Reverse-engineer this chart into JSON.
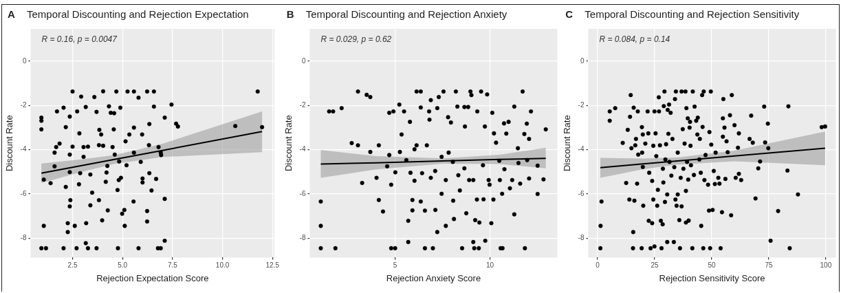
{
  "chart_data": [
    {
      "type": "scatter",
      "title": "Temporal Discounting and Rejection Expectation",
      "xlabel": "Rejection Expectation Score",
      "ylabel": "Discount Rate",
      "annotations": [
        "A",
        "R = 0.16, p = 0.0047"
      ],
      "xlim": [
        0.4,
        12.6
      ],
      "ylim": [
        -8.87,
        1.46
      ],
      "xticks": [
        2.5,
        {
          "value": 5,
          "label": "5.0"
        },
        7.5,
        {
          "value": 10,
          "label": "10.0"
        },
        12.5
      ],
      "yticks": [
        -8,
        -6,
        -4,
        -2,
        0
      ],
      "grid": true,
      "marker": "circle",
      "series": [
        {
          "type": "scatter",
          "color": "#000000",
          "x": [
            0.94,
            0.94,
            0.94,
            1.06,
            1.06,
            0.94,
            1.17,
            1.4,
            1.6,
            1.72,
            1.6,
            1.68,
            2.05,
            2.16,
            2.16,
            2.05,
            2.26,
            2.26,
            2.36,
            2.36,
            2.36,
            2.39,
            2.5,
            2.5,
            2.61,
            2.7,
            2.73,
            2.82,
            2.84,
            2.93,
            3.05,
            3.05,
            3.16,
            3.16,
            3.18,
            3.27,
            3.27,
            3.39,
            3.39,
            3.59,
            3.7,
            3.7,
            3.82,
            3.84,
            3.98,
            3.93,
            4.03,
            4.03,
            4.16,
            4.24,
            4.26,
            4.32,
            4.5,
            4.58,
            4.56,
            4.61,
            4.69,
            4.77,
            4.81,
            4.83,
            4.89,
            4.92,
            4.98,
            5.09,
            5.15,
            5.2,
            5.25,
            5.11,
            5.34,
            5.57,
            5.57,
            5.57,
            5.55,
            5.8,
            5.8,
            5.91,
            5.98,
            6.0,
            6.0,
            6.23,
            6.23,
            6.32,
            6.34,
            6.45,
            6.57,
            6.57,
            6.68,
            6.77,
            6.8,
            6.91,
            6.91,
            7.11,
            7.11,
            7.11,
            7.45,
            7.77,
            7.68,
            10.64,
            11.76,
            11.98,
            6.93,
            6.34,
            6.23,
            4.75,
            4.41,
            4.2,
            3.82,
            3.48,
            2.88,
            2.36,
            1.85
          ],
          "values": [
            -2.55,
            -2.69,
            -3.08,
            -5.35,
            -7.44,
            -8.45,
            -8.45,
            -5.51,
            -4.75,
            -2.27,
            -4.13,
            -3.88,
            -2.1,
            -2.98,
            -5.68,
            -8.45,
            -7.72,
            -7.32,
            -6.56,
            -4.22,
            -2.5,
            -6.28,
            -1.37,
            -3.86,
            -7.44,
            -8.45,
            -2.27,
            -5.56,
            -3.26,
            -1.6,
            -3.88,
            -4.32,
            -2.07,
            -8.22,
            -7.32,
            -8.45,
            -3.86,
            -6.51,
            -5.12,
            -1.62,
            -8.45,
            -2.29,
            -6.28,
            -3.1,
            -7.19,
            -3.31,
            -1.36,
            -3.82,
            -5.45,
            -4.73,
            -6.74,
            -2.04,
            -3.88,
            -2.35,
            -3.08,
            -4.22,
            -1.37,
            -8.45,
            -5.37,
            -4.53,
            -2.1,
            -5.27,
            -6.89,
            -6.72,
            -3.62,
            -4.7,
            -1.37,
            -7.44,
            -3.31,
            -1.37,
            -3.0,
            -4.13,
            -6.34,
            -1.65,
            -8.45,
            -4.55,
            -3.31,
            -5.3,
            -5.48,
            -1.37,
            -6.77,
            -3.79,
            -5.06,
            -5.84,
            -1.37,
            -2.05,
            -5.32,
            -8.45,
            -3.88,
            -8.45,
            -4.13,
            -8.11,
            -6.22,
            -2.55,
            -1.96,
            -2.95,
            -2.82,
            -2.93,
            -1.37,
            -2.98,
            -4.24,
            -2.84,
            -7.24,
            -5.82,
            -2.33,
            -5.03,
            -3.79,
            -5.94,
            -5.06,
            -5.01,
            -3.72
          ]
        },
        {
          "type": "line",
          "marker": "none",
          "color": "#000000",
          "x": [
            0.94,
            3,
            4.6,
            7,
            11.98
          ],
          "values": [
            -5.06,
            -4.71,
            -4.44,
            -4.03,
            -3.18
          ],
          "lower": [
            -5.5,
            -4.99,
            -4.64,
            -4.33,
            -4.11
          ],
          "upper": [
            -4.62,
            -4.43,
            -4.24,
            -3.73,
            -2.27
          ]
        }
      ]
    },
    {
      "type": "scatter",
      "title": "Temporal Discounting and Rejection Anxiety",
      "xlabel": "Rejection Anxiety Score",
      "ylabel": "Discount Rate",
      "annotations": [
        "B",
        "R = 0.029, p = 0.62"
      ],
      "xlim": [
        0.5,
        13.55
      ],
      "ylim": [
        -8.87,
        1.46
      ],
      "xticks": [
        5,
        10
      ],
      "yticks": [
        -8,
        -6,
        -4,
        -2,
        0
      ],
      "grid": true,
      "marker": "circle",
      "series": [
        {
          "type": "scatter",
          "color": "#000000",
          "x": [
            1.08,
            1.08,
            1.08,
            1.52,
            1.73,
            1.85,
            2.18,
            2.71,
            3.04,
            3.04,
            3.26,
            3.5,
            3.69,
            3.69,
            4.02,
            4.14,
            4.14,
            4.36,
            4.58,
            4.69,
            4.69,
            4.79,
            4.79,
            5.0,
            4.91,
            5.01,
            5.22,
            5.25,
            5.34,
            5.47,
            5.59,
            5.69,
            5.69,
            5.78,
            5.81,
            5.91,
            5.91,
            6.02,
            6.02,
            6.13,
            6.13,
            6.35,
            6.35,
            6.35,
            6.42,
            6.57,
            6.57,
            6.67,
            6.79,
            6.81,
            6.88,
            6.88,
            6.99,
            7.11,
            7.12,
            7.22,
            7.22,
            7.3,
            7.45,
            7.45,
            7.55,
            7.67,
            7.67,
            7.79,
            7.82,
            7.94,
            8.06,
            8.2,
            8.1,
            8.28,
            8.33,
            8.41,
            8.53,
            8.65,
            8.65,
            8.68,
            8.75,
            8.85,
            8.9,
            8.97,
            9.02,
            9.12,
            9.12,
            9.17,
            9.22,
            9.31,
            9.33,
            9.41,
            9.44,
            9.53,
            9.63,
            9.66,
            9.73,
            9.75,
            9.85,
            9.93,
            9.98,
            10.07,
            10.12,
            10.18,
            10.21,
            10.32,
            10.52,
            10.56,
            10.66,
            10.64,
            10.74,
            10.76,
            10.86,
            10.98,
            11.05,
            11.17,
            11.28,
            11.28,
            11.47,
            11.59,
            11.72,
            11.81,
            11.84,
            11.94,
            12.06,
            12.16,
            12.06,
            12.51,
            12.51,
            12.82,
            12.94,
            11.96,
            11.5,
            10.49,
            8.04
          ],
          "values": [
            -6.34,
            -7.44,
            -8.45,
            -2.27,
            -2.27,
            -8.45,
            -2.12,
            -3.7,
            -1.37,
            -3.8,
            -5.5,
            -1.52,
            -1.62,
            -4.1,
            -5.27,
            -3.8,
            -6.27,
            -6.79,
            -4.75,
            -2.33,
            -4.24,
            -5.58,
            -8.45,
            -8.45,
            -2.27,
            -5.02,
            -1.96,
            -4.1,
            -3.31,
            -2.27,
            -4.47,
            -7.21,
            -8.17,
            -2.74,
            -5.04,
            -6.27,
            -6.74,
            -5.4,
            -3.98,
            -1.37,
            -3.8,
            -1.37,
            -2.09,
            -6.34,
            -5.06,
            -6.75,
            -8.45,
            -3.8,
            -2.27,
            -2.64,
            -1.76,
            -5.27,
            -8.45,
            -4.96,
            -6.72,
            -2.12,
            -7.72,
            -1.62,
            -4.32,
            -5.99,
            -1.37,
            -5.37,
            -7.44,
            -2.53,
            -4.13,
            -2.77,
            -6.3,
            -1.37,
            -7.13,
            -2.05,
            -5.15,
            -5.84,
            -8.45,
            -2.07,
            -4.84,
            -2.95,
            -6.87,
            -2.07,
            -5.37,
            -1.37,
            -1.53,
            -5.37,
            -8.17,
            -8.45,
            -7.18,
            -6.25,
            -2.27,
            -8.45,
            -7.29,
            -1.37,
            -4.7,
            -6.24,
            -2.95,
            -8.11,
            -1.5,
            -5.37,
            -5.58,
            -7.32,
            -2.33,
            -6.25,
            -3.26,
            -3.68,
            -5.37,
            -8.45,
            -8.45,
            -5.99,
            -2.81,
            -4.88,
            -3.27,
            -2.74,
            -5.74,
            -5.37,
            -2.05,
            -6.92,
            -3.93,
            -5.53,
            -1.37,
            -3.29,
            -8.45,
            -2.82,
            -3.51,
            -2.27,
            -5.3,
            -6.0,
            -4.72,
            -5.34,
            -3.08,
            -4.47,
            -4.6,
            -4.5,
            -4.55
          ]
        },
        {
          "type": "line",
          "marker": "none",
          "color": "#000000",
          "x": [
            1.08,
            4,
            7.5,
            10.5,
            12.94
          ],
          "values": [
            -4.65,
            -4.59,
            -4.51,
            -4.44,
            -4.39
          ],
          "lower": [
            -5.27,
            -4.89,
            -4.63,
            -4.65,
            -4.84
          ],
          "upper": [
            -4.01,
            -4.29,
            -4.39,
            -4.23,
            -3.91
          ]
        }
      ]
    },
    {
      "type": "scatter",
      "title": "Temporal Discounting and Rejection Sensitivity",
      "xlabel": "Rejection Sensitivity Score",
      "ylabel": "Discount Rate",
      "annotations": [
        "C",
        "R = 0.084, p = 0.14"
      ],
      "xlim": [
        -4.1,
        104.4
      ],
      "ylim": [
        -8.87,
        1.46
      ],
      "xticks": [
        0,
        25,
        50,
        75,
        100
      ],
      "yticks": [
        -8,
        -6,
        -4,
        -2,
        0
      ],
      "grid": true,
      "marker": "circle",
      "series": [
        {
          "type": "scatter",
          "color": "#000000",
          "x": [
            1.2,
            1.3,
            1.7,
            5.3,
            5.3,
            7.7,
            11.0,
            13.2,
            12.5,
            13.9,
            14.2,
            14.5,
            14.8,
            15.5,
            15.6,
            15.8,
            16.1,
            16.5,
            16.8,
            17.3,
            17.6,
            17.8,
            19.4,
            19.3,
            19.5,
            19.8,
            20.0,
            19.8,
            20.9,
            21.9,
            22.2,
            22.4,
            22.6,
            23.2,
            23.9,
            23.9,
            24.4,
            24.4,
            24.9,
            24.9,
            25.4,
            25.7,
            26.1,
            26.4,
            26.8,
            26.9,
            27.3,
            27.7,
            28.0,
            28.5,
            28.6,
            28.8,
            29.0,
            29.3,
            29.5,
            29.7,
            30.0,
            30.5,
            30.5,
            30.7,
            31.0,
            31.3,
            31.5,
            32.0,
            32.3,
            32.8,
            33.4,
            33.6,
            33.9,
            34.1,
            34.3,
            34.6,
            35.1,
            35.1,
            35.8,
            36.1,
            36.4,
            36.8,
            36.8,
            37.3,
            37.6,
            38.1,
            38.5,
            38.7,
            38.7,
            38.9,
            39.2,
            39.5,
            39.7,
            39.9,
            40.3,
            40.5,
            40.7,
            40.9,
            41.5,
            41.7,
            42.2,
            42.5,
            43.2,
            43.7,
            43.9,
            44.6,
            44.8,
            45.2,
            45.4,
            45.8,
            46.0,
            46.3,
            46.5,
            46.8,
            47.3,
            48.4,
            48.8,
            49.0,
            49.3,
            49.6,
            49.8,
            50.4,
            50.9,
            51.4,
            51.7,
            52.9,
            53.4,
            53.9,
            54.5,
            54.9,
            54.9,
            55.1,
            55.6,
            56.0,
            56.5,
            57.0,
            58.0,
            58.5,
            58.8,
            60.0,
            60.5,
            61.5,
            61.9,
            61.9,
            62.9,
            66.6,
            67.3,
            68.0,
            69.2,
            70.4,
            71.2,
            73.0,
            73.4,
            74.6,
            74.8,
            75.8,
            79.1,
            83.2,
            83.6,
            84.2,
            87.8,
            98.2,
            99.7
          ],
          "values": [
            -8.45,
            -7.44,
            -6.34,
            -2.27,
            -2.69,
            -2.12,
            -3.69,
            -3.1,
            -5.5,
            -6.25,
            -2.51,
            -1.53,
            -3.93,
            -8.45,
            -7.72,
            -2.1,
            -6.3,
            -3.8,
            -3.51,
            -5.53,
            -2.27,
            -4.22,
            -2.98,
            -8.45,
            -4.13,
            -4.78,
            -6.53,
            -3.31,
            -3.72,
            -2.27,
            -3.26,
            -7.21,
            -5.04,
            -8.45,
            -7.32,
            -5.41,
            -6.25,
            -3.82,
            -8.37,
            -2.27,
            -3.26,
            -4.29,
            -6.53,
            -5.81,
            -1.63,
            -2.27,
            -3.8,
            -7.21,
            -8.45,
            -7.37,
            -4.86,
            -5.48,
            -2.03,
            -1.37,
            -6.36,
            -4.44,
            -3.75,
            -8.17,
            -6.02,
            -2.2,
            -3.28,
            -1.96,
            -4.55,
            -2.33,
            -5.17,
            -3.51,
            -8.17,
            -4.79,
            -1.71,
            -6.25,
            -1.37,
            -6.53,
            -4.13,
            -6.02,
            -7.18,
            -8.45,
            -5.27,
            -1.37,
            -6.56,
            -3.07,
            -4.86,
            -3.72,
            -1.37,
            -7.29,
            -5.86,
            -2.12,
            -4.55,
            -2.58,
            -5.35,
            -7.2,
            -3.0,
            -2.74,
            -3.82,
            -4.7,
            -8.45,
            -1.37,
            -5.14,
            -2.05,
            -2.69,
            -3.31,
            -2.55,
            -4.44,
            -3.51,
            -5.04,
            -7.44,
            -1.53,
            -2.97,
            -8.45,
            -1.37,
            -5.37,
            -4.24,
            -5.58,
            -6.75,
            -3.2,
            -8.45,
            -1.37,
            -3.77,
            -6.72,
            -4.96,
            -5.55,
            -4.13,
            -5.27,
            -5.53,
            -8.45,
            -6.82,
            -2.58,
            -3.41,
            -1.71,
            -3.0,
            -5.32,
            -3.62,
            -4.11,
            -2.44,
            -6.96,
            -1.53,
            -2.89,
            -5.27,
            -3.91,
            -3.26,
            -5.09,
            -5.37,
            -3.51,
            -2.46,
            -3.68,
            -6.2,
            -4.84,
            -4.53,
            -2.05,
            -3.67,
            -2.82,
            -3.93,
            -8.11,
            -6.77,
            -4.94,
            -2.04,
            -8.45,
            -6.02,
            -2.98,
            -2.95
          ]
        },
        {
          "type": "line",
          "marker": "none",
          "color": "#000000",
          "x": [
            1.2,
            20,
            35,
            60,
            99.7
          ],
          "values": [
            -4.81,
            -4.64,
            -4.51,
            -4.28,
            -3.93
          ],
          "lower": [
            -5.27,
            -4.88,
            -4.67,
            -4.52,
            -4.7
          ],
          "upper": [
            -4.37,
            -4.4,
            -4.35,
            -4.04,
            -3.18
          ]
        }
      ]
    }
  ]
}
